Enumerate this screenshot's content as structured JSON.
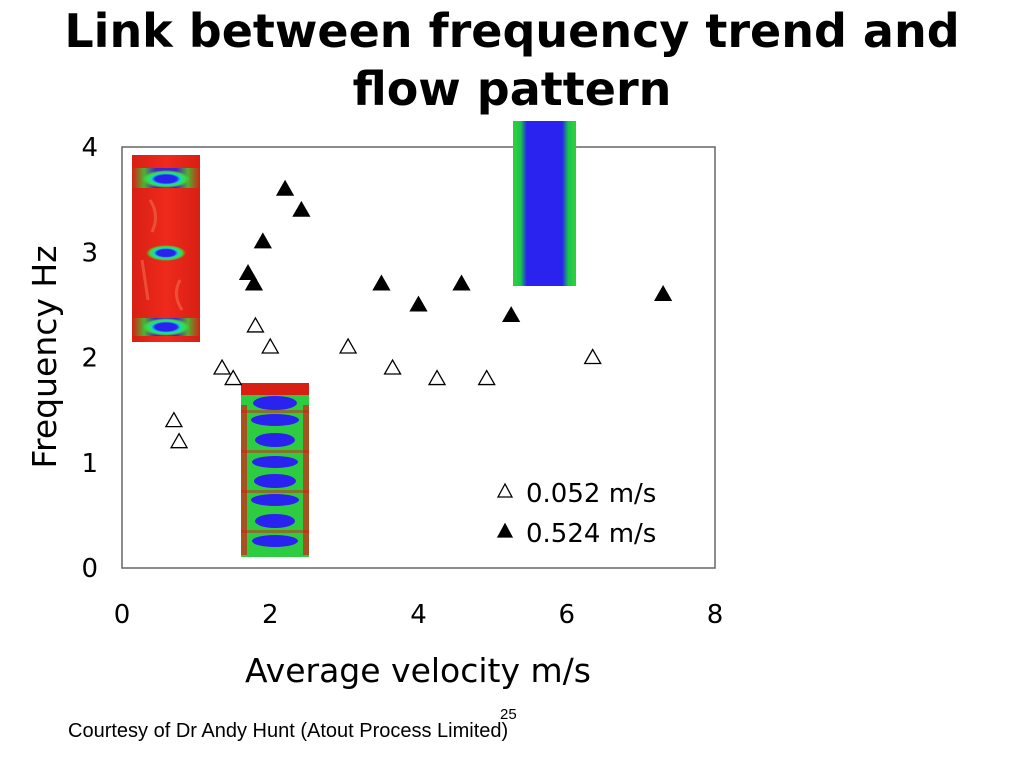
{
  "slide": {
    "title_line1": "Link between frequency trend and",
    "title_line2": "flow pattern",
    "footer": "Courtesy of Dr Andy Hunt (Atout Process Limited)",
    "page_number": "25"
  },
  "colors": {
    "axis": "#666666",
    "marker": "#000000",
    "tomo_red": "#e8231a",
    "tomo_green": "#2ecc40",
    "tomo_blue": "#2a22ee"
  },
  "chart_data": {
    "type": "scatter",
    "title": "",
    "xlabel": "Average velocity m/s",
    "ylabel": "Frequency Hz",
    "xlim": [
      0,
      8
    ],
    "ylim": [
      0,
      4
    ],
    "xticks": [
      0,
      2,
      4,
      6,
      8
    ],
    "yticks": [
      0,
      1,
      2,
      3,
      4
    ],
    "legend_position": "bottom-right",
    "series": [
      {
        "name": "0.052 m/s",
        "marker": "open-triangle",
        "points": [
          {
            "x": 0.7,
            "y": 1.4
          },
          {
            "x": 0.77,
            "y": 1.2
          },
          {
            "x": 1.35,
            "y": 1.9
          },
          {
            "x": 1.5,
            "y": 1.8
          },
          {
            "x": 1.8,
            "y": 2.3
          },
          {
            "x": 2.0,
            "y": 2.1
          },
          {
            "x": 3.05,
            "y": 2.1
          },
          {
            "x": 3.65,
            "y": 1.9
          },
          {
            "x": 4.25,
            "y": 1.8
          },
          {
            "x": 4.92,
            "y": 1.8
          },
          {
            "x": 6.35,
            "y": 2.0
          }
        ]
      },
      {
        "name": "0.524 m/s",
        "marker": "filled-triangle",
        "points": [
          {
            "x": 1.7,
            "y": 2.8
          },
          {
            "x": 1.78,
            "y": 2.7
          },
          {
            "x": 1.9,
            "y": 3.1
          },
          {
            "x": 2.2,
            "y": 3.6
          },
          {
            "x": 2.42,
            "y": 3.4
          },
          {
            "x": 3.5,
            "y": 2.7
          },
          {
            "x": 4.0,
            "y": 2.5
          },
          {
            "x": 4.58,
            "y": 2.7
          },
          {
            "x": 5.25,
            "y": 2.4
          },
          {
            "x": 7.3,
            "y": 2.6
          }
        ]
      }
    ]
  }
}
